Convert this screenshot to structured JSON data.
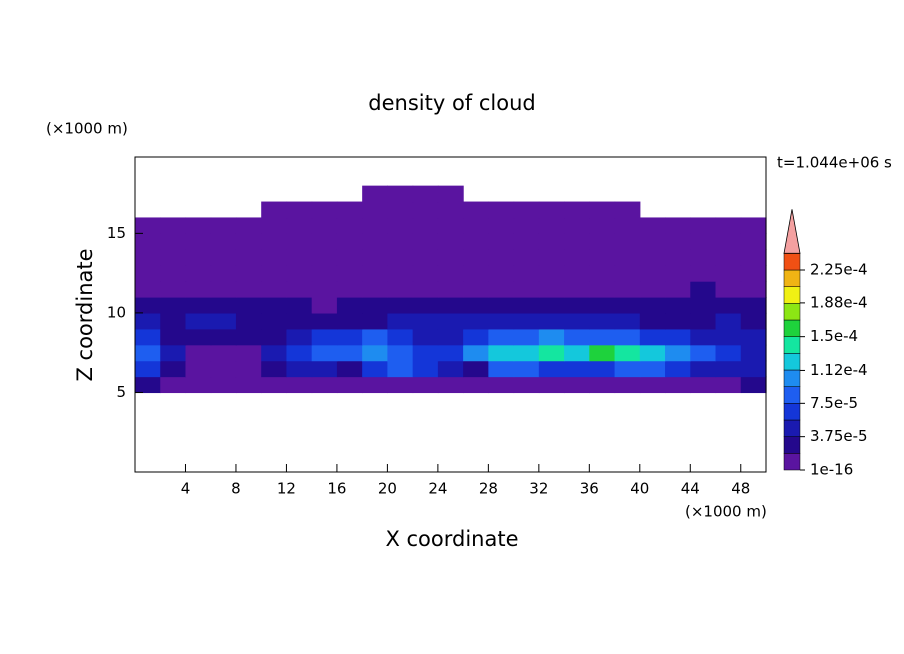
{
  "chart_data": {
    "type": "contour",
    "title": "density of cloud",
    "xlabel": "X coordinate",
    "ylabel": "Z coordinate",
    "x_unit": "(×1000 m)",
    "y_unit": "(×1000 m)",
    "annotation": "t=1.044e+06 s",
    "xlim": [
      0,
      50
    ],
    "ylim": [
      0,
      19.8
    ],
    "xticks": [
      4,
      8,
      12,
      16,
      20,
      24,
      28,
      32,
      36,
      40,
      44,
      48
    ],
    "yticks": [
      5,
      10,
      15
    ],
    "x": [
      1,
      3,
      5,
      7,
      9,
      11,
      13,
      15,
      17,
      19,
      21,
      23,
      25,
      27,
      29,
      31,
      33,
      35,
      37,
      39,
      41,
      43,
      45,
      47,
      49
    ],
    "z": [
      5.5,
      6.5,
      7.5,
      8.5,
      9.5,
      10.5,
      11.5,
      12.5,
      13.5,
      14.5,
      15.5,
      16.5,
      17.5
    ],
    "values": [
      [
        2e-05,
        1e-16,
        1e-16,
        1e-16,
        1e-16,
        1e-16,
        1e-16,
        1e-16,
        1e-16,
        1e-16,
        1e-16,
        1e-16,
        1e-16,
        1e-16,
        1e-16,
        1e-16,
        1e-16,
        1e-16,
        1e-16,
        1e-16,
        1e-16,
        1e-16,
        1e-16,
        1e-16,
        2e-05
      ],
      [
        6e-05,
        2e-05,
        1e-16,
        1e-16,
        1e-16,
        2e-05,
        4e-05,
        4e-05,
        2e-05,
        6e-05,
        8e-05,
        6e-05,
        4e-05,
        2e-05,
        8e-05,
        9e-05,
        7e-05,
        6e-05,
        7e-05,
        8e-05,
        9e-05,
        7e-05,
        5e-05,
        4e-05,
        4e-05
      ],
      [
        8e-05,
        4e-05,
        1e-16,
        1e-16,
        1e-16,
        4e-05,
        7e-05,
        8e-05,
        9e-05,
        0.00011,
        9e-05,
        7e-05,
        6e-05,
        0.0001,
        0.00012,
        0.00013,
        0.00014,
        0.00013,
        0.00015,
        0.00014,
        0.00013,
        0.00011,
        9e-05,
        6e-05,
        5e-05
      ],
      [
        6e-05,
        2e-05,
        2e-05,
        2e-05,
        2e-05,
        2e-05,
        4e-05,
        6e-05,
        7e-05,
        8e-05,
        6e-05,
        5e-05,
        4e-05,
        6e-05,
        8e-05,
        9e-05,
        0.0001,
        9e-05,
        9e-05,
        8e-05,
        7e-05,
        6e-05,
        5e-05,
        5e-05,
        4e-05
      ],
      [
        4e-05,
        2e-05,
        4e-05,
        5e-05,
        2e-05,
        2e-05,
        2e-05,
        2e-05,
        2e-05,
        2e-05,
        4e-05,
        4e-05,
        4e-05,
        4e-05,
        4e-05,
        5e-05,
        4e-05,
        4e-05,
        4e-05,
        4e-05,
        2e-05,
        2e-05,
        2e-05,
        4e-05,
        2e-05
      ],
      [
        2e-05,
        2e-05,
        2e-05,
        2e-05,
        2e-05,
        2e-05,
        2e-05,
        1e-16,
        2e-05,
        2e-05,
        2e-05,
        2e-05,
        2e-05,
        2e-05,
        2e-05,
        2e-05,
        2e-05,
        2e-05,
        2e-05,
        2e-05,
        2e-05,
        2e-05,
        2e-05,
        2e-05,
        2e-05
      ],
      [
        1e-16,
        1e-16,
        1e-16,
        1e-16,
        1e-16,
        1e-16,
        1e-16,
        1e-16,
        1e-16,
        1e-16,
        1e-16,
        1e-16,
        1e-16,
        1e-16,
        1e-16,
        1e-16,
        1e-16,
        1e-16,
        1e-16,
        1e-16,
        1e-16,
        1e-16,
        2e-05,
        1e-16,
        1e-16
      ],
      [
        1e-16,
        1e-16,
        1e-16,
        1e-16,
        1e-16,
        1e-16,
        1e-16,
        1e-16,
        1e-16,
        1e-16,
        1e-16,
        1e-16,
        1e-16,
        1e-16,
        1e-16,
        1e-16,
        1e-16,
        1e-16,
        1e-16,
        1e-16,
        1e-16,
        1e-16,
        1e-16,
        1e-16,
        1e-16
      ],
      [
        1e-16,
        1e-16,
        1e-16,
        1e-16,
        1e-16,
        1e-16,
        1e-16,
        1e-16,
        1e-16,
        1e-16,
        1e-16,
        1e-16,
        1e-16,
        1e-16,
        1e-16,
        1e-16,
        1e-16,
        1e-16,
        1e-16,
        1e-16,
        1e-16,
        1e-16,
        1e-16,
        1e-16,
        1e-16
      ],
      [
        1e-16,
        1e-16,
        1e-16,
        1e-16,
        1e-16,
        1e-16,
        1e-16,
        1e-16,
        1e-16,
        1e-16,
        1e-16,
        1e-16,
        1e-16,
        1e-16,
        1e-16,
        1e-16,
        1e-16,
        1e-16,
        1e-16,
        1e-16,
        1e-16,
        1e-16,
        1e-16,
        1e-16,
        1e-16
      ],
      [
        1e-16,
        1e-16,
        1e-16,
        1e-16,
        1e-16,
        1e-16,
        1e-16,
        1e-16,
        1e-16,
        1e-16,
        1e-16,
        1e-16,
        1e-16,
        1e-16,
        1e-16,
        1e-16,
        1e-16,
        1e-16,
        1e-16,
        1e-16,
        1e-16,
        1e-16,
        1e-16,
        1e-16,
        1e-16
      ],
      [
        null,
        null,
        null,
        null,
        null,
        1e-16,
        1e-16,
        1e-16,
        1e-16,
        1e-16,
        1e-16,
        1e-16,
        1e-16,
        1e-16,
        1e-16,
        1e-16,
        1e-16,
        1e-16,
        1e-16,
        1e-16,
        null,
        null,
        null,
        null,
        null
      ],
      [
        null,
        null,
        null,
        null,
        null,
        null,
        null,
        null,
        null,
        1e-16,
        1e-16,
        1e-16,
        1e-16,
        null,
        null,
        null,
        null,
        null,
        null,
        null,
        null,
        null,
        null,
        null,
        null
      ]
    ],
    "levels": [
      1e-16,
      1.875e-05,
      3.75e-05,
      5.625e-05,
      7.5e-05,
      9.375e-05,
      0.0001125,
      0.00013125,
      0.00015,
      0.00016875,
      0.0001875,
      0.00020625,
      0.000225,
      0.00024375
    ],
    "colors": [
      "#5a14a0",
      "#24088c",
      "#1a1ab0",
      "#1436d8",
      "#1e5ef0",
      "#1e8cf0",
      "#14c8dc",
      "#14e6a0",
      "#1ed23c",
      "#8ce614",
      "#f0f014",
      "#f0b414",
      "#f05014"
    ],
    "extend_color": "#f4a0a0",
    "colorbar_ticks": [
      1e-16,
      {
        "value": 3.75e-05,
        "label": "3.75e-5"
      },
      {
        "value": 7.5e-05,
        "label": "7.5e-5"
      },
      {
        "value": 0.000112,
        "label": "1.12e-4"
      },
      {
        "value": 0.00015,
        "label": "1.5e-4"
      },
      {
        "value": 0.000188,
        "label": "1.88e-4"
      },
      {
        "value": 0.000225,
        "label": "2.25e-4"
      }
    ]
  }
}
